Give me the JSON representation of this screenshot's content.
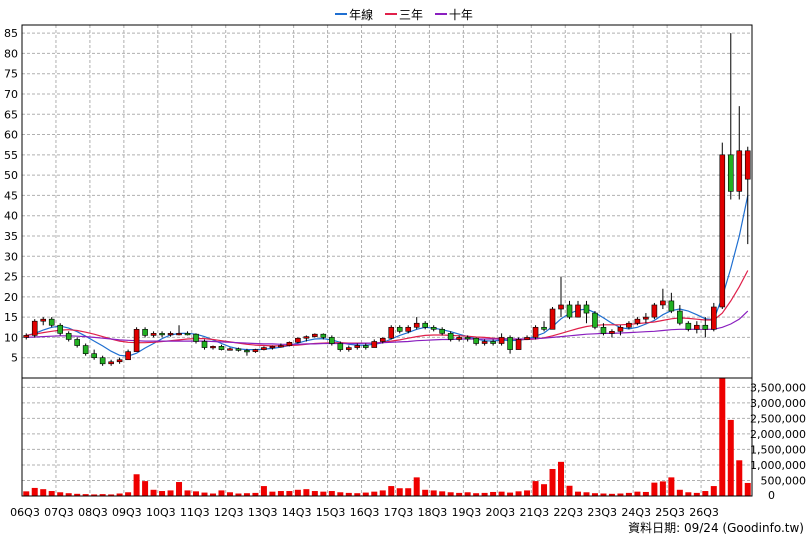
{
  "legend": {
    "items": [
      {
        "label": "年線",
        "color": "#1f6fd1"
      },
      {
        "label": "三年",
        "color": "#e0204a"
      },
      {
        "label": "十年",
        "color": "#8a1fbf"
      }
    ]
  },
  "credit": "資料日期: 09/24  (Goodinfo.tw)",
  "colors": {
    "up": "#e00000",
    "down": "#22b022",
    "volume": "#ee0000",
    "grid": "#b0b0b0"
  },
  "chart_data": {
    "type": "candlestick",
    "price_axis": {
      "min": 0,
      "max": 87,
      "ticks": [
        5,
        10,
        15,
        20,
        25,
        30,
        35,
        40,
        45,
        50,
        55,
        60,
        65,
        70,
        75,
        80,
        85
      ]
    },
    "volume_axis": {
      "min": 0,
      "max": 3800000,
      "ticks": [
        500000,
        1000000,
        1500000,
        2000000,
        2500000,
        3000000,
        3500000
      ],
      "tick_labels": [
        "500,000",
        "1,000,000",
        "1,500,000",
        "2,000,000",
        "2,500,000",
        "3,000,000",
        "3,500,000"
      ]
    },
    "x_labels": [
      "06Q3",
      "07Q3",
      "08Q3",
      "09Q3",
      "10Q3",
      "11Q3",
      "12Q3",
      "13Q3",
      "14Q3",
      "15Q3",
      "16Q3",
      "17Q3",
      "18Q3",
      "19Q3",
      "20Q3",
      "21Q3",
      "22Q3",
      "23Q3",
      "24Q3",
      "25Q3",
      "26Q3"
    ],
    "candles": [
      [
        10,
        11,
        9.5,
        10.5,
        150000
      ],
      [
        10.5,
        14.5,
        10,
        14,
        260000
      ],
      [
        14,
        15,
        13,
        14.5,
        220000
      ],
      [
        14.5,
        15,
        12.5,
        13,
        160000
      ],
      [
        13,
        13.5,
        10.5,
        11,
        120000
      ],
      [
        11,
        11.5,
        9,
        9.5,
        90000
      ],
      [
        9.5,
        10,
        7.5,
        8,
        70000
      ],
      [
        8,
        8.5,
        5.5,
        6,
        60000
      ],
      [
        6,
        7,
        4.5,
        5,
        50000
      ],
      [
        5,
        5.5,
        3,
        3.5,
        60000
      ],
      [
        3.5,
        4.5,
        3,
        4,
        50000
      ],
      [
        4,
        5,
        3.5,
        4.5,
        80000
      ],
      [
        4.5,
        7,
        4.5,
        6.5,
        120000
      ],
      [
        6.5,
        12.5,
        6.5,
        12,
        700000
      ],
      [
        12,
        12.5,
        10,
        10.5,
        480000
      ],
      [
        10.5,
        11.5,
        10,
        11,
        200000
      ],
      [
        11,
        11.5,
        10,
        10.8,
        160000
      ],
      [
        10.8,
        11.5,
        10.2,
        11,
        180000
      ],
      [
        11,
        13,
        10.5,
        11,
        450000
      ],
      [
        11,
        11.5,
        10.5,
        10.8,
        180000
      ],
      [
        10.8,
        11,
        8.5,
        9,
        150000
      ],
      [
        9,
        9.5,
        7,
        7.5,
        110000
      ],
      [
        7.5,
        8,
        7,
        7.8,
        80000
      ],
      [
        7.8,
        8.2,
        6.8,
        7,
        180000
      ],
      [
        7,
        7.5,
        6.8,
        7.2,
        120000
      ],
      [
        7.2,
        7.5,
        6.5,
        6.8,
        80000
      ],
      [
        6.8,
        7.2,
        5.5,
        6.5,
        90000
      ],
      [
        6.5,
        7.2,
        6.2,
        7,
        100000
      ],
      [
        7,
        7.8,
        6.8,
        7.5,
        320000
      ],
      [
        7.5,
        8,
        7,
        7.8,
        140000
      ],
      [
        7.8,
        8.5,
        7.5,
        8,
        160000
      ],
      [
        8,
        9,
        7.8,
        8.8,
        160000
      ],
      [
        8.8,
        10,
        8.5,
        9.8,
        200000
      ],
      [
        9.8,
        10.5,
        9,
        10.2,
        220000
      ],
      [
        10.2,
        11,
        10,
        10.8,
        160000
      ],
      [
        10.8,
        11,
        9.5,
        10,
        140000
      ],
      [
        10,
        10.5,
        8,
        8.5,
        160000
      ],
      [
        8.5,
        9,
        6.5,
        7,
        120000
      ],
      [
        7,
        8,
        6.5,
        7.5,
        100000
      ],
      [
        7.5,
        8.5,
        7,
        8,
        90000
      ],
      [
        8,
        8.5,
        7,
        7.5,
        110000
      ],
      [
        7.5,
        9.5,
        7.5,
        9,
        140000
      ],
      [
        9,
        10,
        8.5,
        9.8,
        180000
      ],
      [
        9.8,
        13,
        9.5,
        12.5,
        320000
      ],
      [
        12.5,
        13,
        11,
        11.5,
        250000
      ],
      [
        11.5,
        13,
        11,
        12.5,
        250000
      ],
      [
        12.5,
        15,
        12,
        13.5,
        600000
      ],
      [
        13.5,
        14,
        12,
        12.5,
        200000
      ],
      [
        12.5,
        13,
        11.5,
        12,
        180000
      ],
      [
        12,
        12.5,
        10.5,
        11,
        150000
      ],
      [
        11,
        11.5,
        9,
        9.5,
        120000
      ],
      [
        9.5,
        10.5,
        9,
        10,
        100000
      ],
      [
        10,
        10.5,
        9,
        9.8,
        120000
      ],
      [
        9.8,
        10,
        8,
        8.5,
        90000
      ],
      [
        8.5,
        9.5,
        8,
        9,
        100000
      ],
      [
        9,
        9.5,
        8,
        8.5,
        130000
      ],
      [
        8.5,
        11,
        8,
        10,
        140000
      ],
      [
        10,
        10.5,
        6,
        7,
        110000
      ],
      [
        7,
        10,
        7,
        9.5,
        150000
      ],
      [
        9.5,
        10.5,
        9.5,
        10,
        180000
      ],
      [
        10,
        13,
        9.5,
        12.5,
        480000
      ],
      [
        12.5,
        14,
        11.5,
        12,
        380000
      ],
      [
        12,
        17.5,
        12,
        17,
        870000
      ],
      [
        17,
        25,
        15,
        18,
        1100000
      ],
      [
        18,
        19,
        14.5,
        15,
        330000
      ],
      [
        15,
        19,
        15,
        18,
        140000
      ],
      [
        18,
        19,
        13.5,
        16,
        120000
      ],
      [
        16,
        16.5,
        12,
        12.5,
        90000
      ],
      [
        12.5,
        13.5,
        10.5,
        11,
        80000
      ],
      [
        11,
        12,
        10,
        11.5,
        70000
      ],
      [
        11.5,
        13,
        10.5,
        12.5,
        80000
      ],
      [
        12.5,
        14,
        12,
        13.5,
        100000
      ],
      [
        13.5,
        15,
        13,
        14.5,
        140000
      ],
      [
        14.5,
        16,
        13.5,
        15,
        130000
      ],
      [
        15,
        18.5,
        14.5,
        18,
        430000
      ],
      [
        18,
        22,
        17,
        19,
        470000
      ],
      [
        19,
        21,
        16,
        16.5,
        600000
      ],
      [
        16.5,
        18,
        13,
        13.5,
        200000
      ],
      [
        13.5,
        14,
        11.5,
        12,
        120000
      ],
      [
        12,
        14,
        11,
        13,
        100000
      ],
      [
        13,
        15,
        10,
        12,
        160000
      ],
      [
        12,
        18.5,
        11.5,
        17.5,
        320000
      ],
      [
        17.5,
        58,
        17,
        55,
        3800000
      ],
      [
        55,
        85,
        44,
        46,
        2450000
      ],
      [
        46,
        67,
        44,
        56,
        1150000
      ],
      [
        49,
        57,
        33,
        56,
        420000
      ]
    ],
    "series": [
      {
        "name": "年線",
        "values": [
          10.5,
          11,
          11.8,
          12.5,
          12.8,
          12.3,
          11.4,
          10.3,
          9.1,
          7.9,
          6.6,
          5.6,
          5.4,
          6.1,
          7.4,
          8.5,
          9.7,
          10.6,
          11,
          11,
          10.8,
          10.2,
          9.4,
          8.5,
          7.7,
          7.2,
          7,
          7,
          7.1,
          7.3,
          7.6,
          8,
          8.6,
          9.2,
          9.6,
          9.7,
          9.4,
          8.8,
          8.3,
          8.1,
          8.1,
          8.3,
          8.7,
          9.6,
          10.5,
          11.2,
          12,
          12.5,
          12.3,
          11.9,
          11.4,
          10.8,
          10.2,
          9.6,
          9.2,
          9.1,
          9.4,
          9.2,
          9.3,
          9.6,
          10.3,
          11.1,
          12.7,
          14.6,
          15.9,
          16.7,
          17,
          16.1,
          14.8,
          13.5,
          12.4,
          12.1,
          12.5,
          13.3,
          14.2,
          15.6,
          16.6,
          17,
          16.5,
          15.6,
          14.6,
          14.4,
          20,
          27,
          35,
          45
        ]
      },
      {
        "name": "三年",
        "values": [
          10.5,
          10.8,
          11.2,
          11.5,
          11.8,
          11.9,
          11.7,
          11.3,
          10.8,
          10.2,
          9.6,
          9.1,
          8.8,
          8.7,
          8.7,
          8.8,
          9,
          9.2,
          9.4,
          9.6,
          9.7,
          9.7,
          9.5,
          9.2,
          8.9,
          8.6,
          8.3,
          8.1,
          8,
          7.9,
          7.9,
          8,
          8.1,
          8.3,
          8.5,
          8.6,
          8.7,
          8.7,
          8.6,
          8.6,
          8.6,
          8.6,
          8.8,
          9.1,
          9.4,
          9.8,
          10.2,
          10.5,
          10.6,
          10.6,
          10.5,
          10.4,
          10.3,
          10.1,
          10,
          9.8,
          9.7,
          9.6,
          9.5,
          9.5,
          9.6,
          9.9,
          10.4,
          11,
          11.6,
          12.2,
          12.7,
          13,
          13.1,
          13.1,
          13.1,
          13.2,
          13.4,
          13.6,
          13.8,
          14.2,
          14.6,
          14.8,
          14.7,
          14.5,
          14.3,
          14.3,
          16,
          19,
          22.5,
          26.5
        ]
      },
      {
        "name": "十年",
        "values": [
          10,
          10.1,
          10.2,
          10.3,
          10.4,
          10.4,
          10.3,
          10.2,
          10,
          9.8,
          9.6,
          9.4,
          9.3,
          9.2,
          9.1,
          9.1,
          9.1,
          9.1,
          9.1,
          9.1,
          9.1,
          9.1,
          9,
          8.9,
          8.8,
          8.7,
          8.6,
          8.5,
          8.4,
          8.4,
          8.3,
          8.3,
          8.3,
          8.4,
          8.4,
          8.5,
          8.5,
          8.5,
          8.5,
          8.5,
          8.6,
          8.6,
          8.7,
          8.8,
          8.9,
          9,
          9.2,
          9.3,
          9.4,
          9.5,
          9.5,
          9.6,
          9.6,
          9.6,
          9.6,
          9.6,
          9.6,
          9.6,
          9.6,
          9.6,
          9.7,
          9.8,
          10,
          10.2,
          10.4,
          10.6,
          10.8,
          10.9,
          11,
          11,
          11.1,
          11.2,
          11.3,
          11.4,
          11.5,
          11.7,
          11.9,
          12,
          12,
          12,
          12,
          12,
          12.5,
          13.3,
          14.5,
          16.5
        ]
      }
    ]
  }
}
